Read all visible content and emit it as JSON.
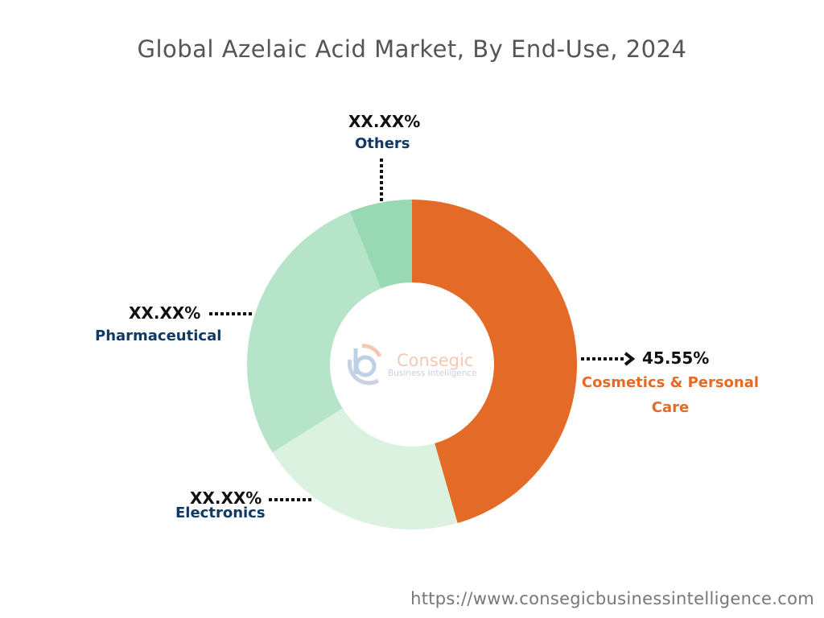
{
  "chart_data": {
    "type": "pie",
    "variant": "donut",
    "title": "Global Azelaic Acid Market, By End-Use, 2024",
    "categories": [
      "Cosmetics & Personal Care",
      "Electronics",
      "Pharmaceutical",
      "Others"
    ],
    "values": [
      45.55,
      20.5,
      27.8,
      6.15
    ],
    "value_labels": [
      "45.55%",
      "XX.XX%",
      "XX.XX%",
      "XX.XX%"
    ],
    "colors": [
      "#e36a27",
      "#daf2df",
      "#b5e4c8",
      "#98d8b3"
    ],
    "legend": "none"
  },
  "watermark": {
    "name": "Consegic",
    "sub": "Business Intelligence"
  },
  "footer": {
    "url": "https://www.consegicbusinessintelligence.com"
  }
}
